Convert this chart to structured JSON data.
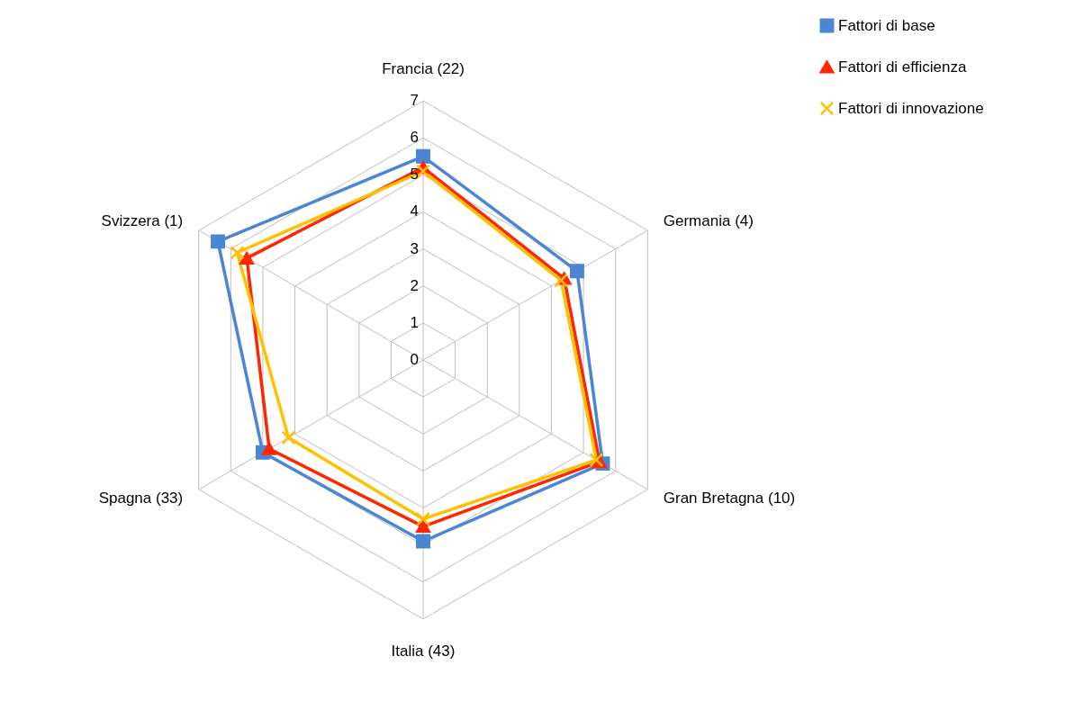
{
  "chart_data": {
    "type": "radar",
    "categories": [
      "Francia (22)",
      "Germania (4)",
      "Gran Bretagna (10)",
      "Italia (43)",
      "Spagna (33)",
      "Svizzera (1)"
    ],
    "ylim": [
      0,
      7
    ],
    "yticks": [
      0,
      1,
      2,
      3,
      4,
      5,
      6,
      7
    ],
    "grid": true,
    "legend": "right",
    "series": [
      {
        "name": "Fattori di base",
        "color": "#4a86d4",
        "marker": "square",
        "values": [
          5.5,
          4.8,
          5.6,
          4.9,
          5.0,
          6.4
        ]
      },
      {
        "name": "Fattori di efficienza",
        "color": "#ff2600",
        "marker": "triangle",
        "values": [
          5.2,
          4.4,
          5.5,
          4.5,
          4.8,
          5.5
        ]
      },
      {
        "name": "Fattori di innovazione",
        "color": "#ffc000",
        "marker": "cross",
        "values": [
          5.1,
          4.3,
          5.4,
          4.3,
          4.2,
          5.8
        ]
      }
    ]
  }
}
